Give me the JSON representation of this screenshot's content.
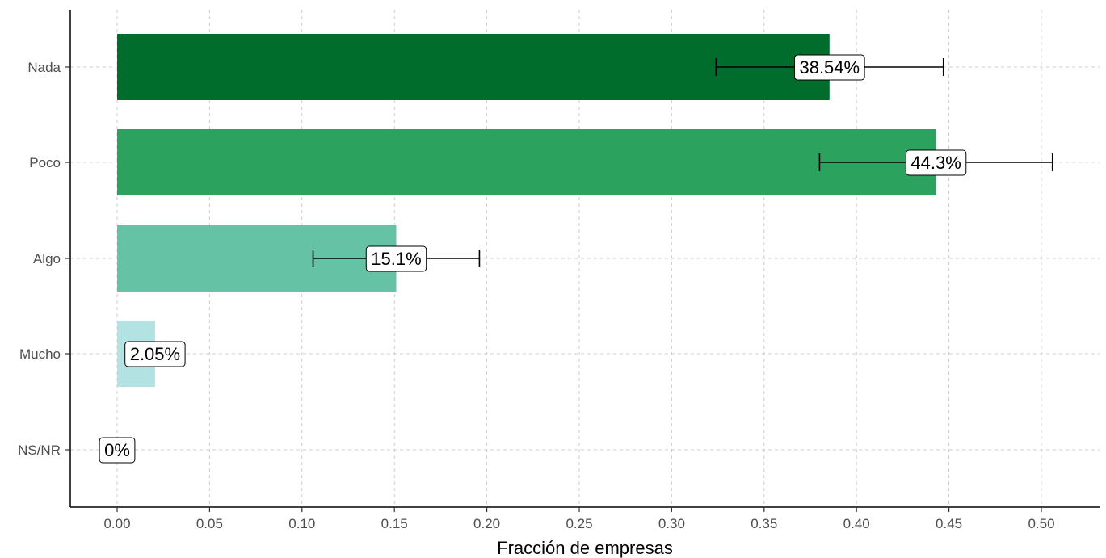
{
  "chart_data": {
    "type": "bar",
    "orientation": "horizontal",
    "xlabel": "Fracción de empresas",
    "ylabel": "",
    "xlim": [
      -0.025,
      0.53
    ],
    "x_ticks": [
      "0.00",
      "0.05",
      "0.10",
      "0.15",
      "0.20",
      "0.25",
      "0.30",
      "0.35",
      "0.40",
      "0.45",
      "0.50"
    ],
    "x_tick_values": [
      0.0,
      0.05,
      0.1,
      0.15,
      0.2,
      0.25,
      0.3,
      0.35,
      0.4,
      0.45,
      0.5
    ],
    "grid": true,
    "legend": "none",
    "bars": [
      {
        "category": "Nada",
        "value": 0.3854,
        "label": "38.54%",
        "err_low": 0.324,
        "err_high": 0.447,
        "color": "#006D2C"
      },
      {
        "category": "Poco",
        "value": 0.443,
        "label": "44.3%",
        "err_low": 0.38,
        "err_high": 0.506,
        "color": "#2CA25F"
      },
      {
        "category": "Algo",
        "value": 0.151,
        "label": "15.1%",
        "err_low": 0.106,
        "err_high": 0.196,
        "color": "#66C2A4"
      },
      {
        "category": "Mucho",
        "value": 0.0205,
        "label": "2.05%",
        "err_low": null,
        "err_high": null,
        "color": "#B2E2E2"
      },
      {
        "category": "NS/NR",
        "value": 0.0,
        "label": "0%",
        "err_low": null,
        "err_high": null,
        "color": "#EDF8FB"
      }
    ]
  }
}
